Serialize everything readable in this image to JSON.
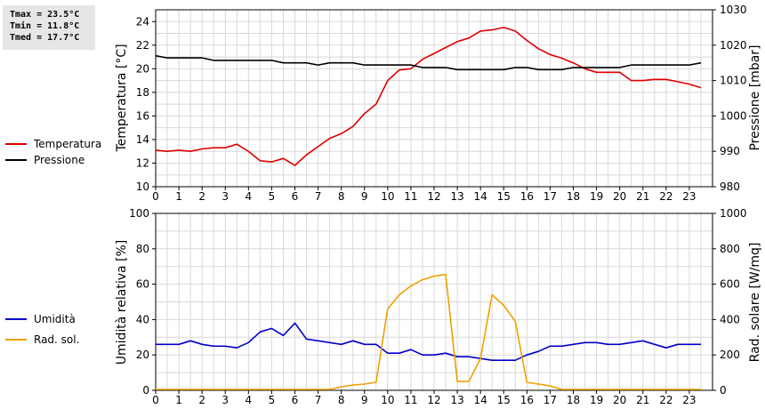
{
  "stats": {
    "tmax": "Tmax = 23.5°C",
    "tmin": "Tmin = 11.8°C",
    "tmed": "Tmed = 17.7°C"
  },
  "colors": {
    "temperature": "#dd0000",
    "pressure": "#000000",
    "humidity": "#0000cc",
    "radiation": "#f0a000",
    "grid": "#d8d8d8"
  },
  "chart_data": [
    {
      "type": "line",
      "xlim": [
        0,
        24
      ],
      "x_ticks": [
        "0",
        "1",
        "2",
        "3",
        "4",
        "5",
        "6",
        "7",
        "8",
        "9",
        "10",
        "11",
        "12",
        "13",
        "14",
        "15",
        "16",
        "17",
        "18",
        "19",
        "20",
        "21",
        "22",
        "23"
      ],
      "ylabel": "Temperatura [°C]",
      "ylim": [
        10,
        25
      ],
      "y_ticks": [
        "10",
        "12",
        "14",
        "16",
        "18",
        "20",
        "22",
        "24"
      ],
      "y2label": "Pressione [mbar]",
      "y2lim": [
        980,
        1030
      ],
      "y2_ticks": [
        "980",
        "990",
        "1000",
        "1010",
        "1020",
        "1030"
      ],
      "grid": true,
      "legend": "left",
      "series": [
        {
          "name": "Temperatura",
          "axis": "left",
          "x": [
            0,
            0.5,
            1,
            1.5,
            2,
            2.5,
            3,
            3.5,
            4,
            4.5,
            5,
            5.5,
            6,
            6.5,
            7,
            7.5,
            8,
            8.5,
            9,
            9.5,
            10,
            10.5,
            11,
            11.5,
            12,
            12.5,
            13,
            13.5,
            14,
            14.5,
            15,
            15.5,
            16,
            16.5,
            17,
            17.5,
            18,
            18.5,
            19,
            19.5,
            20,
            20.5,
            21,
            21.5,
            22,
            22.5,
            23,
            23.5
          ],
          "values": [
            13.1,
            13.0,
            13.1,
            13.0,
            13.2,
            13.3,
            13.3,
            13.6,
            13.0,
            12.2,
            12.1,
            12.4,
            11.8,
            12.7,
            13.4,
            14.1,
            14.5,
            15.1,
            16.2,
            17.0,
            19.0,
            19.9,
            20.0,
            20.8,
            21.3,
            21.8,
            22.3,
            22.6,
            23.2,
            23.3,
            23.5,
            23.2,
            22.4,
            21.7,
            21.2,
            20.9,
            20.5,
            20.0,
            19.7,
            19.7,
            19.7,
            19.0,
            19.0,
            19.1,
            19.1,
            18.9,
            18.7,
            18.4
          ]
        },
        {
          "name": "Pressione",
          "axis": "right",
          "x": [
            0,
            0.5,
            1,
            1.5,
            2,
            2.5,
            3,
            3.5,
            4,
            4.5,
            5,
            5.5,
            6,
            6.5,
            7,
            7.5,
            8,
            8.5,
            9,
            9.5,
            10,
            10.5,
            11,
            11.5,
            12,
            12.5,
            13,
            13.5,
            14,
            14.5,
            15,
            15.5,
            16,
            16.5,
            17,
            17.5,
            18,
            18.5,
            19,
            19.5,
            20,
            20.5,
            21,
            21.5,
            22,
            22.5,
            23,
            23.5
          ],
          "values": [
            1017.0,
            1016.4,
            1016.4,
            1016.4,
            1016.4,
            1015.7,
            1015.7,
            1015.7,
            1015.7,
            1015.7,
            1015.7,
            1015.0,
            1015.0,
            1015.0,
            1014.4,
            1015.0,
            1015.0,
            1015.0,
            1014.4,
            1014.4,
            1014.4,
            1014.4,
            1014.4,
            1013.7,
            1013.7,
            1013.7,
            1013.1,
            1013.1,
            1013.1,
            1013.1,
            1013.1,
            1013.7,
            1013.7,
            1013.1,
            1013.1,
            1013.1,
            1013.7,
            1013.7,
            1013.7,
            1013.7,
            1013.7,
            1014.4,
            1014.4,
            1014.4,
            1014.4,
            1014.4,
            1014.4,
            1015.0
          ]
        }
      ]
    },
    {
      "type": "line",
      "xlim": [
        0,
        24
      ],
      "x_ticks": [
        "0",
        "1",
        "2",
        "3",
        "4",
        "5",
        "6",
        "7",
        "8",
        "9",
        "10",
        "11",
        "12",
        "13",
        "14",
        "15",
        "16",
        "17",
        "18",
        "19",
        "20",
        "21",
        "22",
        "23"
      ],
      "ylabel": "Umidità relativa [%]",
      "ylim": [
        0,
        100
      ],
      "y_ticks": [
        "0",
        "20",
        "40",
        "60",
        "80",
        "100"
      ],
      "y2label": "Rad. solare [W/mq]",
      "y2lim": [
        0,
        1000
      ],
      "y2_ticks": [
        "0",
        "200",
        "400",
        "600",
        "800",
        "1000"
      ],
      "grid": true,
      "legend": "left",
      "series": [
        {
          "name": "Umidità",
          "axis": "left",
          "x": [
            0,
            0.5,
            1,
            1.5,
            2,
            2.5,
            3,
            3.5,
            4,
            4.5,
            5,
            5.5,
            6,
            6.5,
            7,
            7.5,
            8,
            8.5,
            9,
            9.5,
            10,
            10.5,
            11,
            11.5,
            12,
            12.5,
            13,
            13.5,
            14,
            14.5,
            15,
            15.5,
            16,
            16.5,
            17,
            17.5,
            18,
            18.5,
            19,
            19.5,
            20,
            20.5,
            21,
            21.5,
            22,
            22.5,
            23,
            23.5
          ],
          "values": [
            26,
            26,
            26,
            28,
            26,
            25,
            25,
            24,
            27,
            33,
            35,
            31,
            38,
            29,
            28,
            27,
            26,
            28,
            26,
            26,
            21,
            21,
            23,
            20,
            20,
            21,
            19,
            19,
            18,
            17,
            17,
            17,
            20,
            22,
            25,
            25,
            26,
            27,
            27,
            26,
            26,
            27,
            28,
            26,
            24,
            26,
            26,
            26
          ]
        },
        {
          "name": "Rad. sol.",
          "axis": "right",
          "x": [
            0,
            0.5,
            1,
            1.5,
            2,
            2.5,
            3,
            3.5,
            4,
            4.5,
            5,
            5.5,
            6,
            6.5,
            7,
            7.5,
            8,
            8.5,
            9,
            9.5,
            10,
            10.5,
            11,
            11.5,
            12,
            12.5,
            13,
            13.5,
            14,
            14.5,
            15,
            15.5,
            16,
            16.5,
            17,
            17.5,
            18,
            18.5,
            19,
            19.5,
            20,
            20.5,
            21,
            21.5,
            22,
            22.5,
            23,
            23.5
          ],
          "values": [
            5,
            5,
            5,
            5,
            5,
            5,
            5,
            5,
            5,
            5,
            5,
            5,
            5,
            5,
            5,
            5,
            20,
            30,
            35,
            45,
            460,
            540,
            590,
            625,
            645,
            655,
            50,
            50,
            180,
            540,
            480,
            390,
            45,
            35,
            25,
            5,
            5,
            5,
            5,
            5,
            5,
            5,
            5,
            5,
            5,
            5,
            5,
            5
          ]
        }
      ]
    }
  ]
}
